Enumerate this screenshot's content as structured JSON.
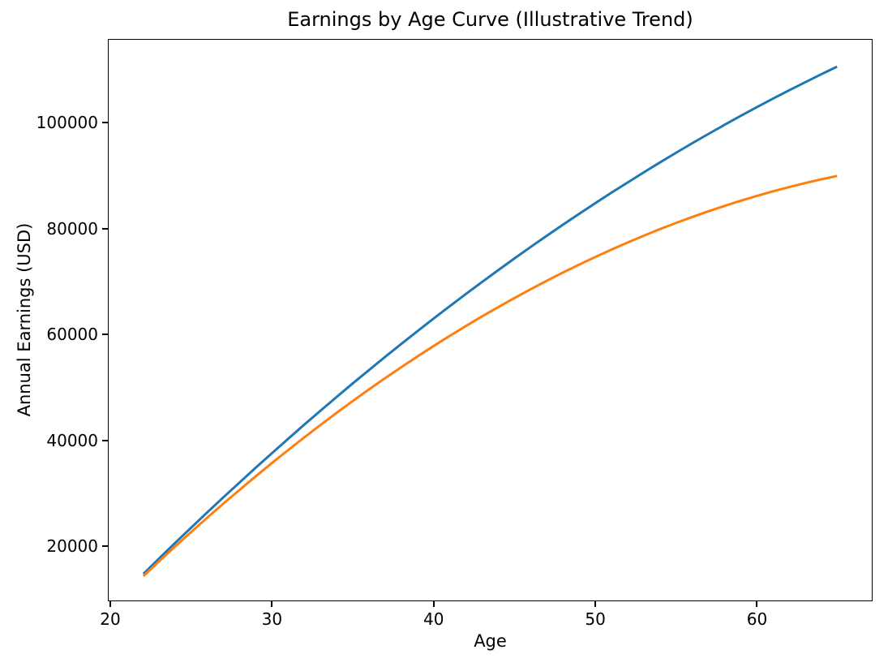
{
  "figure": {
    "background_color": "#ffffff",
    "text_color": "#000000",
    "spine_color": "#000000"
  },
  "chart_data": {
    "type": "line",
    "title": "Earnings by Age Curve (Illustrative Trend)",
    "xlabel": "Age",
    "ylabel": "Annual Earnings (USD)",
    "xlim": [
      19.85,
      67.15
    ],
    "ylim": [
      9580,
      115790
    ],
    "x_ticks": [
      20,
      30,
      40,
      50,
      60
    ],
    "y_ticks": [
      20000,
      40000,
      60000,
      80000,
      100000
    ],
    "grid": false,
    "legend": "none",
    "markers": false,
    "x": [
      22,
      23,
      24,
      25,
      26,
      27,
      28,
      29,
      30,
      31,
      32,
      33,
      34,
      35,
      36,
      37,
      38,
      39,
      40,
      41,
      42,
      43,
      44,
      45,
      46,
      47,
      48,
      49,
      50,
      51,
      52,
      53,
      54,
      55,
      56,
      57,
      58,
      59,
      60,
      61,
      62,
      63,
      64,
      65
    ],
    "series": [
      {
        "name": "series-1-blue",
        "color": "#1f77b4",
        "values": [
          14600,
          17600,
          20560,
          23480,
          26370,
          29230,
          32040,
          34820,
          37560,
          40270,
          42940,
          45580,
          48180,
          50740,
          53260,
          55750,
          58200,
          60620,
          63000,
          65350,
          67650,
          69920,
          72160,
          74360,
          76520,
          78650,
          80740,
          82790,
          84810,
          86790,
          88730,
          90640,
          92510,
          94350,
          96150,
          97910,
          99640,
          101330,
          102980,
          104600,
          106180,
          107720,
          109230,
          110700
        ]
      },
      {
        "name": "series-2-orange",
        "color": "#ff7f0e",
        "values": [
          14200,
          17070,
          19890,
          22650,
          25360,
          28020,
          30630,
          33180,
          35690,
          38130,
          40530,
          42870,
          45160,
          47400,
          49590,
          51720,
          53800,
          55820,
          57800,
          59720,
          61580,
          63400,
          65160,
          66870,
          68530,
          70130,
          71680,
          73180,
          74630,
          76020,
          77360,
          78650,
          79890,
          81070,
          82200,
          83270,
          84300,
          85270,
          86190,
          87050,
          87870,
          88630,
          89330,
          89990
        ]
      }
    ]
  }
}
